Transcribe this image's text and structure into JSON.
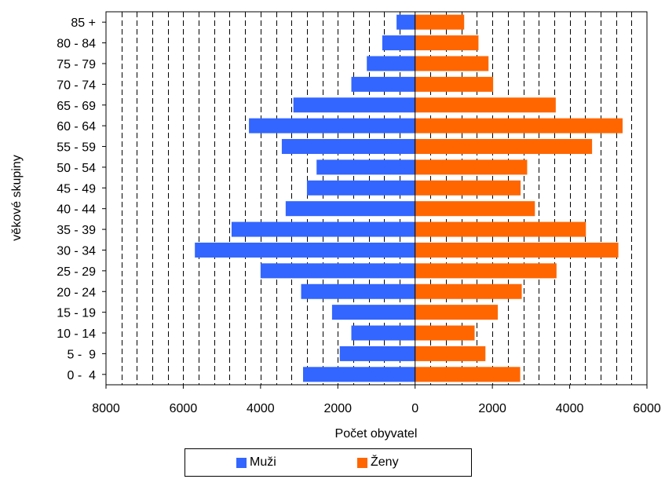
{
  "chart_data": {
    "type": "bar",
    "orientation": "horizontal",
    "layout": "population-pyramid",
    "categories": [
      "0 -  4",
      "5 -  9",
      "10 - 14",
      "15 - 19",
      "20 - 24",
      "25 - 29",
      "30 - 34",
      "35 - 39",
      "40 - 44",
      "45 - 49",
      "50 - 54",
      "55 - 59",
      "60 - 64",
      "65 - 69",
      "70 - 74",
      "75 - 79",
      "80 - 84",
      "85 +"
    ],
    "series": [
      {
        "name": "Muži",
        "color": "#3366ff",
        "side": "left",
        "values": [
          2900,
          1950,
          1650,
          2150,
          2950,
          4000,
          5700,
          4750,
          3350,
          2800,
          2550,
          3450,
          4300,
          3150,
          1650,
          1250,
          850,
          480
        ]
      },
      {
        "name": "Ženy",
        "color": "#ff6600",
        "side": "right",
        "values": [
          2720,
          1820,
          1540,
          2140,
          2760,
          3660,
          5260,
          4420,
          3100,
          2730,
          2900,
          4580,
          5370,
          3640,
          2020,
          1900,
          1640,
          1270
        ]
      }
    ],
    "xlabel": "Počet obyvatel",
    "ylabel": "věkové skupiny",
    "xlim": [
      -8000,
      6000
    ],
    "xticks": [
      -8000,
      -6000,
      -4000,
      -2000,
      0,
      2000,
      4000,
      6000
    ],
    "xtick_labels": [
      "8000",
      "6000",
      "4000",
      "2000",
      "0",
      "2000",
      "4000",
      "6000"
    ],
    "grid": "vertical dashed",
    "legend": "bottom"
  }
}
